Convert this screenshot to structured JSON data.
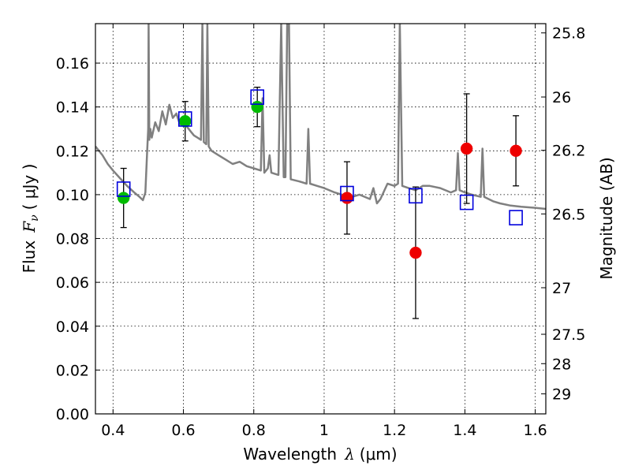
{
  "chart_data": {
    "type": "scatter",
    "xlabel_text": "Wavelength",
    "xlabel_symbol": "λ",
    "xlabel_unit": "(μm)",
    "ylabel_text": "Flux",
    "ylabel_symbol": "F",
    "ylabel_subscript": "ν",
    "ylabel_unit": "( μJy )",
    "y2label": "Magnitude (AB)",
    "xlim": [
      0.35,
      1.63
    ],
    "ylim": [
      0.0,
      0.178
    ],
    "x_ticks": [
      0.4,
      0.6,
      0.8,
      1.0,
      1.2,
      1.4,
      1.6
    ],
    "x_tick_labels": [
      "0.4",
      "0.6",
      "0.8",
      "1",
      "1.2",
      "1.4",
      "1.6"
    ],
    "y_ticks": [
      0.0,
      0.02,
      0.04,
      0.06,
      0.08,
      0.1,
      0.12,
      0.14,
      0.16
    ],
    "y_tick_labels": [
      "0.00",
      "0.02",
      "0.04",
      "0.06",
      "0.08",
      "0.10",
      "0.12",
      "0.14",
      "0.16"
    ],
    "y2_ticks": [
      25.8,
      26,
      26.2,
      26.5,
      27,
      27.5,
      28,
      29
    ],
    "y2_tick_labels": [
      "25.8",
      "26",
      "26.2",
      "26.5",
      "27",
      "27.5",
      "28",
      "29"
    ],
    "grid": true,
    "series": [
      {
        "marker": "circle",
        "color": "#00bb00",
        "points": [
          {
            "x": 0.43,
            "y": 0.0985,
            "err": 0.0135
          },
          {
            "x": 0.605,
            "y": 0.1335,
            "err": 0.009
          },
          {
            "x": 0.81,
            "y": 0.14,
            "err": 0.009
          }
        ]
      },
      {
        "marker": "circle",
        "color": "#ee0000",
        "points": [
          {
            "x": 1.065,
            "y": 0.0985,
            "err": 0.0165
          },
          {
            "x": 1.26,
            "y": 0.0735,
            "err": 0.03
          },
          {
            "x": 1.405,
            "y": 0.121,
            "err": 0.025
          },
          {
            "x": 1.545,
            "y": 0.12,
            "err": 0.016
          }
        ]
      },
      {
        "marker": "open-square",
        "color": "#0000dd",
        "points": [
          {
            "x": 0.43,
            "y": 0.1025
          },
          {
            "x": 0.605,
            "y": 0.1345
          },
          {
            "x": 0.81,
            "y": 0.1445
          },
          {
            "x": 1.065,
            "y": 0.1005
          },
          {
            "x": 1.26,
            "y": 0.0995
          },
          {
            "x": 1.405,
            "y": 0.0965
          },
          {
            "x": 1.545,
            "y": 0.0895
          }
        ]
      },
      {
        "marker": "line",
        "color": "#808080",
        "points": [
          {
            "x": 0.35,
            "y": 0.122
          },
          {
            "x": 0.37,
            "y": 0.118
          },
          {
            "x": 0.385,
            "y": 0.114
          },
          {
            "x": 0.4,
            "y": 0.111
          },
          {
            "x": 0.42,
            "y": 0.1075
          },
          {
            "x": 0.44,
            "y": 0.104
          },
          {
            "x": 0.46,
            "y": 0.101
          },
          {
            "x": 0.475,
            "y": 0.099
          },
          {
            "x": 0.485,
            "y": 0.0975
          },
          {
            "x": 0.492,
            "y": 0.101
          },
          {
            "x": 0.497,
            "y": 0.12
          },
          {
            "x": 0.5,
            "y": 0.13
          },
          {
            "x": 0.501,
            "y": 0.178
          },
          {
            "x": 0.503,
            "y": 0.125
          },
          {
            "x": 0.506,
            "y": 0.13
          },
          {
            "x": 0.51,
            "y": 0.126
          },
          {
            "x": 0.52,
            "y": 0.133
          },
          {
            "x": 0.53,
            "y": 0.129
          },
          {
            "x": 0.54,
            "y": 0.138
          },
          {
            "x": 0.55,
            "y": 0.132
          },
          {
            "x": 0.56,
            "y": 0.141
          },
          {
            "x": 0.57,
            "y": 0.135
          },
          {
            "x": 0.58,
            "y": 0.137
          },
          {
            "x": 0.59,
            "y": 0.132
          },
          {
            "x": 0.6,
            "y": 0.134
          },
          {
            "x": 0.61,
            "y": 0.131
          },
          {
            "x": 0.62,
            "y": 0.129
          },
          {
            "x": 0.63,
            "y": 0.127
          },
          {
            "x": 0.64,
            "y": 0.126
          },
          {
            "x": 0.65,
            "y": 0.125
          },
          {
            "x": 0.654,
            "y": 0.178
          },
          {
            "x": 0.658,
            "y": 0.124
          },
          {
            "x": 0.665,
            "y": 0.123
          },
          {
            "x": 0.668,
            "y": 0.178
          },
          {
            "x": 0.672,
            "y": 0.122
          },
          {
            "x": 0.68,
            "y": 0.12
          },
          {
            "x": 0.7,
            "y": 0.118
          },
          {
            "x": 0.72,
            "y": 0.116
          },
          {
            "x": 0.74,
            "y": 0.114
          },
          {
            "x": 0.76,
            "y": 0.115
          },
          {
            "x": 0.78,
            "y": 0.113
          },
          {
            "x": 0.8,
            "y": 0.112
          },
          {
            "x": 0.82,
            "y": 0.111
          },
          {
            "x": 0.825,
            "y": 0.144
          },
          {
            "x": 0.83,
            "y": 0.11
          },
          {
            "x": 0.84,
            "y": 0.112
          },
          {
            "x": 0.845,
            "y": 0.118
          },
          {
            "x": 0.85,
            "y": 0.11
          },
          {
            "x": 0.87,
            "y": 0.109
          },
          {
            "x": 0.878,
            "y": 0.178
          },
          {
            "x": 0.885,
            "y": 0.108
          },
          {
            "x": 0.89,
            "y": 0.108
          },
          {
            "x": 0.895,
            "y": 0.178
          },
          {
            "x": 0.9,
            "y": 0.178
          },
          {
            "x": 0.905,
            "y": 0.107
          },
          {
            "x": 0.93,
            "y": 0.106
          },
          {
            "x": 0.95,
            "y": 0.105
          },
          {
            "x": 0.955,
            "y": 0.13
          },
          {
            "x": 0.96,
            "y": 0.105
          },
          {
            "x": 0.98,
            "y": 0.104
          },
          {
            "x": 1.0,
            "y": 0.103
          },
          {
            "x": 1.03,
            "y": 0.101
          },
          {
            "x": 1.05,
            "y": 0.1
          },
          {
            "x": 1.08,
            "y": 0.099
          },
          {
            "x": 1.1,
            "y": 0.1
          },
          {
            "x": 1.13,
            "y": 0.098
          },
          {
            "x": 1.14,
            "y": 0.103
          },
          {
            "x": 1.15,
            "y": 0.096
          },
          {
            "x": 1.16,
            "y": 0.098
          },
          {
            "x": 1.18,
            "y": 0.105
          },
          {
            "x": 1.2,
            "y": 0.104
          },
          {
            "x": 1.21,
            "y": 0.105
          },
          {
            "x": 1.215,
            "y": 0.178
          },
          {
            "x": 1.222,
            "y": 0.104
          },
          {
            "x": 1.24,
            "y": 0.103
          },
          {
            "x": 1.26,
            "y": 0.102
          },
          {
            "x": 1.28,
            "y": 0.104
          },
          {
            "x": 1.3,
            "y": 0.104
          },
          {
            "x": 1.33,
            "y": 0.103
          },
          {
            "x": 1.36,
            "y": 0.101
          },
          {
            "x": 1.375,
            "y": 0.102
          },
          {
            "x": 1.38,
            "y": 0.119
          },
          {
            "x": 1.385,
            "y": 0.102
          },
          {
            "x": 1.4,
            "y": 0.101
          },
          {
            "x": 1.42,
            "y": 0.1
          },
          {
            "x": 1.445,
            "y": 0.099
          },
          {
            "x": 1.45,
            "y": 0.121
          },
          {
            "x": 1.455,
            "y": 0.099
          },
          {
            "x": 1.48,
            "y": 0.097
          },
          {
            "x": 1.5,
            "y": 0.096
          },
          {
            "x": 1.53,
            "y": 0.095
          },
          {
            "x": 1.56,
            "y": 0.0945
          },
          {
            "x": 1.6,
            "y": 0.094
          },
          {
            "x": 1.63,
            "y": 0.0935
          }
        ]
      }
    ]
  }
}
